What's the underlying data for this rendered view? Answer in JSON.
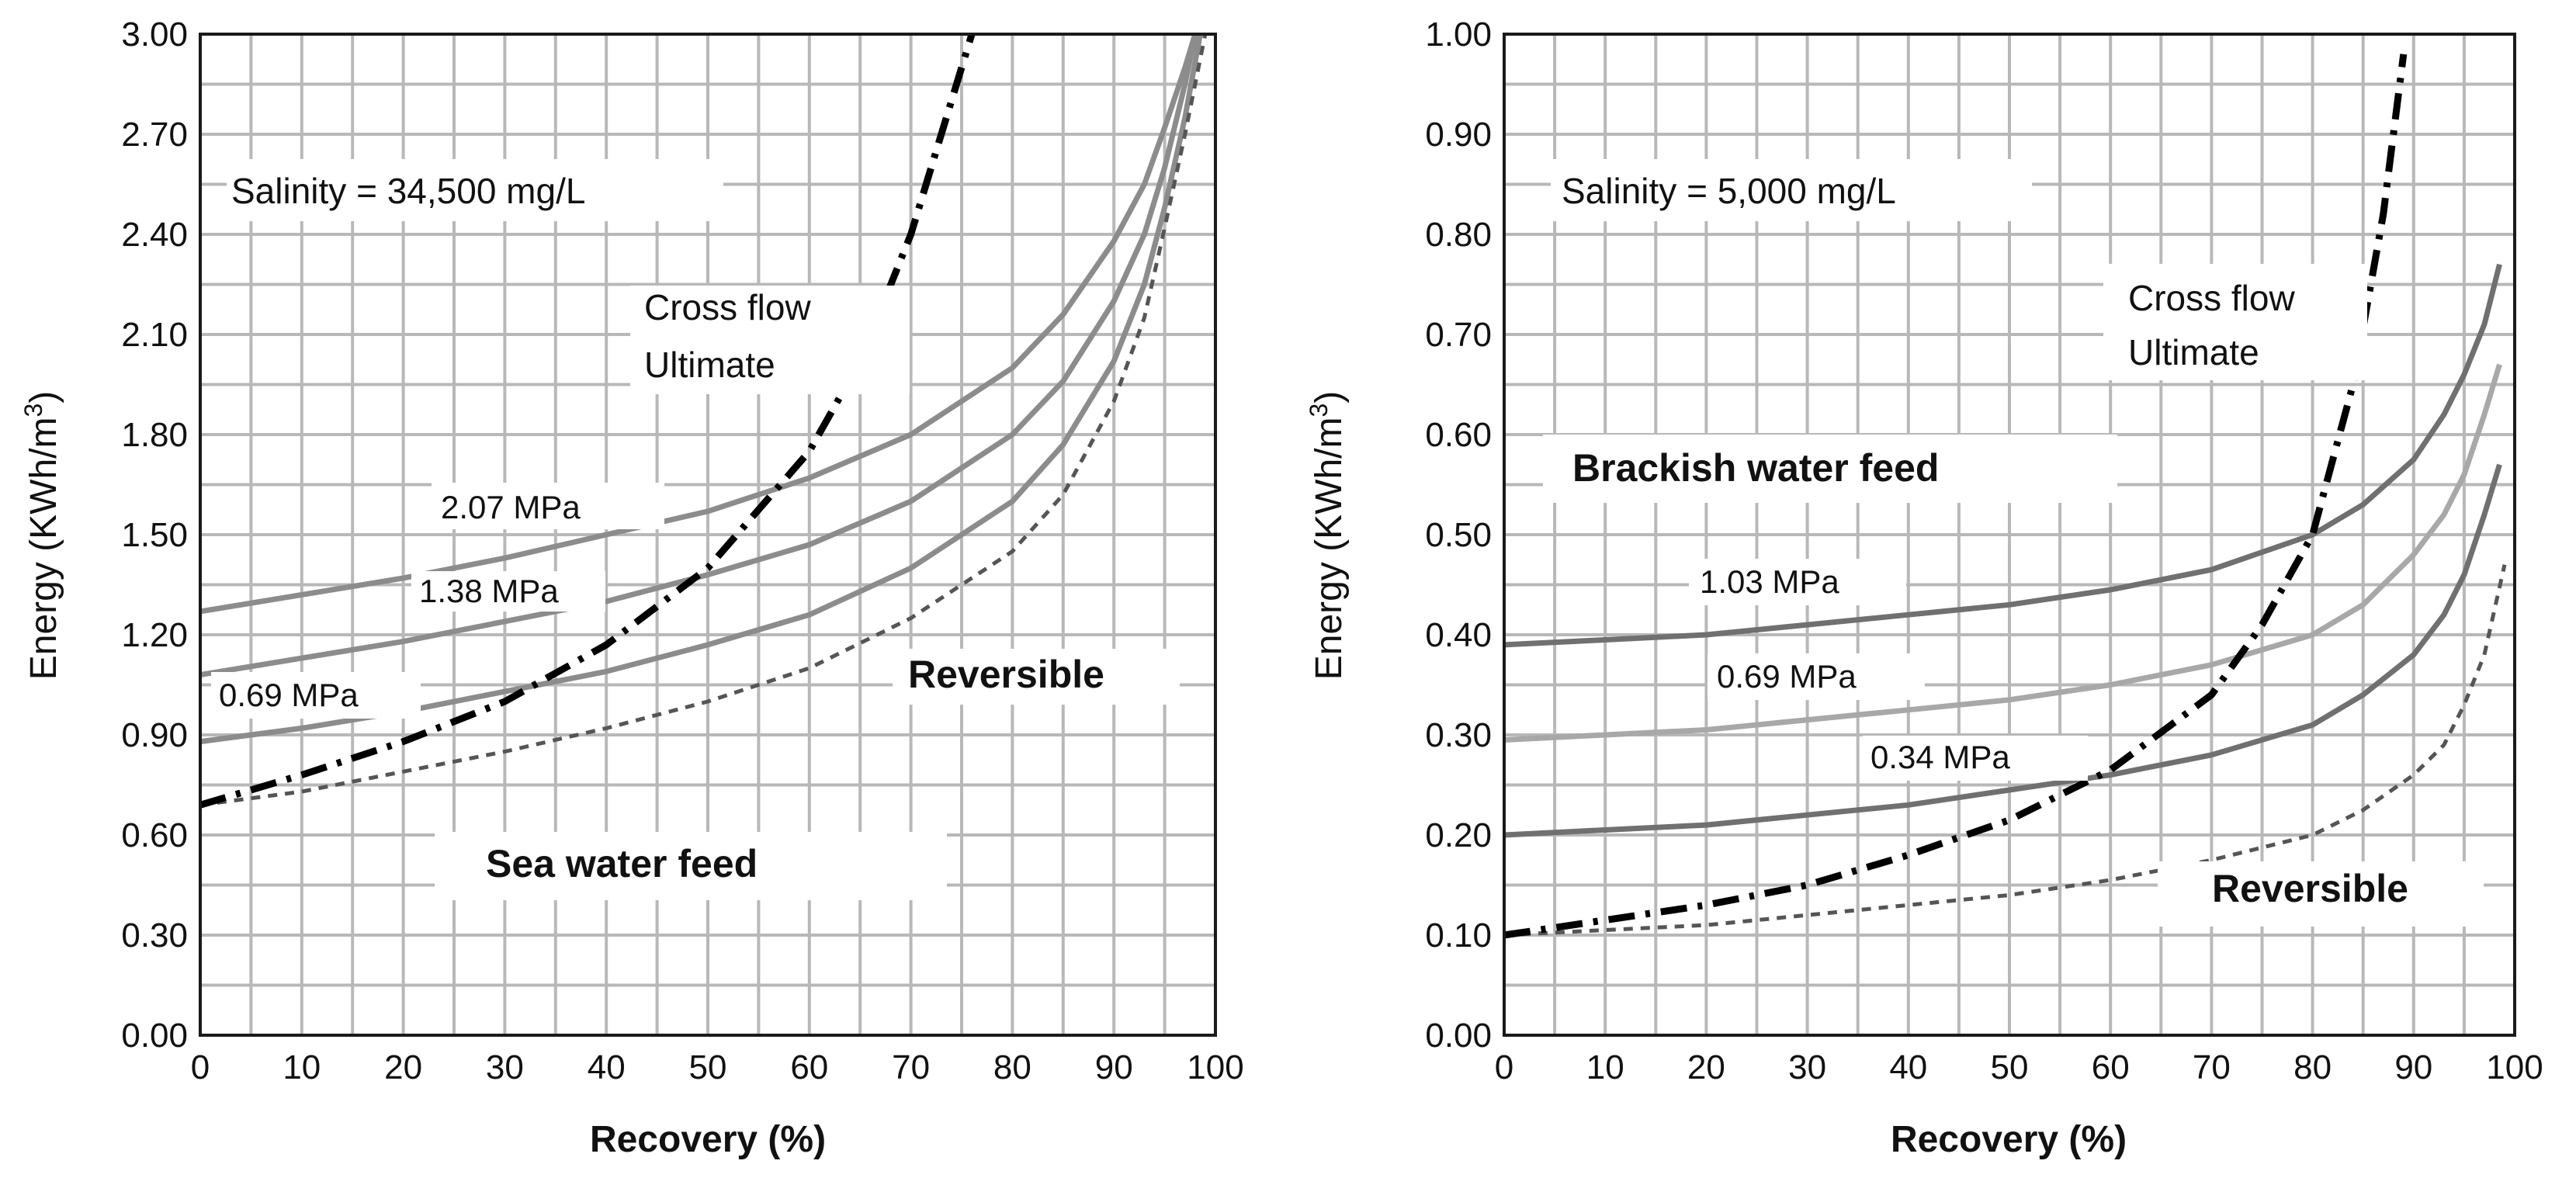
{
  "chart_data": [
    {
      "type": "line",
      "panel": "left",
      "ylabel": "Energy (KWh/m",
      "ylabel_sup": "3",
      "ylabel_close": ")",
      "xlabel": "Recovery (%)",
      "xlim": [
        0,
        100
      ],
      "ylim": [
        0,
        3.0
      ],
      "xticks": [
        0,
        10,
        20,
        30,
        40,
        50,
        60,
        70,
        80,
        90,
        100
      ],
      "xtick_labels": [
        "0",
        "10",
        "20",
        "30",
        "40",
        "50",
        "60",
        "70",
        "80",
        "90",
        "100"
      ],
      "yticks": [
        0,
        0.3,
        0.6,
        0.9,
        1.2,
        1.5,
        1.8,
        2.1,
        2.4,
        2.7,
        3.0
      ],
      "ytick_labels": [
        "0.00",
        "0.30",
        "0.60",
        "0.90",
        "1.20",
        "1.50",
        "1.80",
        "2.10",
        "2.40",
        "2.70",
        "3.00"
      ],
      "annotations": {
        "salinity": "Salinity = 34,500 mg/L",
        "crossflow_line1": "Cross flow",
        "crossflow_line2": "Ultimate",
        "reversible": "Reversible",
        "feed": "Sea water feed"
      },
      "series": [
        {
          "name": "2.07 MPa",
          "style": "solid",
          "color": "#8c8c8c",
          "x": [
            0,
            10,
            20,
            30,
            40,
            50,
            60,
            70,
            80,
            85,
            90,
            93,
            95,
            97,
            98
          ],
          "y": [
            1.27,
            1.32,
            1.37,
            1.43,
            1.5,
            1.57,
            1.67,
            1.8,
            2.0,
            2.16,
            2.38,
            2.55,
            2.72,
            2.9,
            3.0
          ]
        },
        {
          "name": "1.38 MPa",
          "style": "solid",
          "color": "#8c8c8c",
          "x": [
            0,
            10,
            20,
            30,
            40,
            50,
            60,
            70,
            80,
            85,
            90,
            93,
            95,
            97,
            98
          ],
          "y": [
            1.08,
            1.13,
            1.18,
            1.24,
            1.3,
            1.38,
            1.47,
            1.6,
            1.8,
            1.96,
            2.2,
            2.4,
            2.6,
            2.85,
            3.0
          ]
        },
        {
          "name": "0.69 MPa",
          "style": "solid",
          "color": "#8c8c8c",
          "x": [
            0,
            10,
            20,
            30,
            40,
            50,
            60,
            70,
            80,
            85,
            90,
            93,
            95,
            97,
            98.5
          ],
          "y": [
            0.88,
            0.92,
            0.97,
            1.03,
            1.09,
            1.17,
            1.26,
            1.4,
            1.6,
            1.77,
            2.02,
            2.25,
            2.48,
            2.75,
            3.0
          ]
        },
        {
          "name": "Reversible",
          "style": "dashed",
          "color": "#555555",
          "x": [
            0,
            10,
            20,
            30,
            40,
            50,
            60,
            70,
            80,
            85,
            90,
            93,
            95,
            97,
            99
          ],
          "y": [
            0.69,
            0.73,
            0.79,
            0.85,
            0.92,
            1.0,
            1.1,
            1.25,
            1.45,
            1.62,
            1.9,
            2.15,
            2.42,
            2.7,
            3.0
          ]
        },
        {
          "name": "Cross flow Ultimate",
          "style": "dashdot",
          "color": "#000000",
          "x": [
            0,
            10,
            20,
            30,
            40,
            50,
            60,
            65,
            70,
            73,
            76
          ],
          "y": [
            0.69,
            0.78,
            0.88,
            1.0,
            1.17,
            1.4,
            1.75,
            2.02,
            2.4,
            2.7,
            3.0
          ]
        }
      ]
    },
    {
      "type": "line",
      "panel": "right",
      "ylabel": "Energy (KWh/m",
      "ylabel_sup": "3",
      "ylabel_close": ")",
      "xlabel": "Recovery (%)",
      "xlim": [
        0,
        100
      ],
      "ylim": [
        0,
        1.0
      ],
      "xticks": [
        0,
        10,
        20,
        30,
        40,
        50,
        60,
        70,
        80,
        90,
        100
      ],
      "xtick_labels": [
        "0",
        "10",
        "20",
        "30",
        "40",
        "50",
        "60",
        "70",
        "80",
        "90",
        "100"
      ],
      "yticks": [
        0,
        0.1,
        0.2,
        0.3,
        0.4,
        0.5,
        0.6,
        0.7,
        0.8,
        0.9,
        1.0
      ],
      "ytick_labels": [
        "0.00",
        "0.10",
        "0.20",
        "0.30",
        "0.40",
        "0.50",
        "0.60",
        "0.70",
        "0.80",
        "0.90",
        "1.00"
      ],
      "annotations": {
        "salinity": "Salinity = 5,000 mg/L",
        "crossflow_line1": "Cross flow",
        "crossflow_line2": "Ultimate",
        "reversible": "Reversible",
        "feed": "Brackish water feed"
      },
      "series": [
        {
          "name": "1.03 MPa",
          "style": "solid",
          "color": "#707070",
          "x": [
            0,
            10,
            20,
            30,
            40,
            50,
            60,
            70,
            80,
            85,
            90,
            93,
            95,
            97,
            98.5
          ],
          "y": [
            0.39,
            0.395,
            0.4,
            0.41,
            0.42,
            0.43,
            0.445,
            0.465,
            0.5,
            0.53,
            0.575,
            0.62,
            0.66,
            0.71,
            0.77
          ]
        },
        {
          "name": "0.69 MPa",
          "style": "solid",
          "color": "#a8a8a8",
          "x": [
            0,
            10,
            20,
            30,
            40,
            50,
            60,
            70,
            80,
            85,
            90,
            93,
            95,
            97,
            98.5
          ],
          "y": [
            0.295,
            0.3,
            0.305,
            0.315,
            0.325,
            0.335,
            0.35,
            0.37,
            0.4,
            0.43,
            0.48,
            0.52,
            0.56,
            0.62,
            0.67
          ]
        },
        {
          "name": "0.34 MPa",
          "style": "solid",
          "color": "#707070",
          "x": [
            0,
            10,
            20,
            30,
            40,
            50,
            60,
            70,
            80,
            85,
            90,
            93,
            95,
            97,
            98.5
          ],
          "y": [
            0.2,
            0.205,
            0.21,
            0.22,
            0.23,
            0.245,
            0.26,
            0.28,
            0.31,
            0.34,
            0.38,
            0.42,
            0.46,
            0.52,
            0.57
          ]
        },
        {
          "name": "Reversible",
          "style": "dashed",
          "color": "#555555",
          "x": [
            0,
            10,
            20,
            30,
            40,
            50,
            60,
            70,
            80,
            85,
            90,
            93,
            95,
            97,
            99
          ],
          "y": [
            0.1,
            0.105,
            0.11,
            0.12,
            0.13,
            0.14,
            0.155,
            0.175,
            0.2,
            0.225,
            0.26,
            0.29,
            0.33,
            0.38,
            0.47
          ]
        },
        {
          "name": "Cross flow Ultimate",
          "style": "dashdot",
          "color": "#000000",
          "x": [
            0,
            10,
            20,
            30,
            40,
            50,
            60,
            70,
            75,
            80,
            84,
            87,
            89
          ],
          "y": [
            0.1,
            0.115,
            0.13,
            0.15,
            0.18,
            0.215,
            0.265,
            0.34,
            0.41,
            0.5,
            0.65,
            0.82,
            0.98
          ]
        }
      ]
    }
  ]
}
